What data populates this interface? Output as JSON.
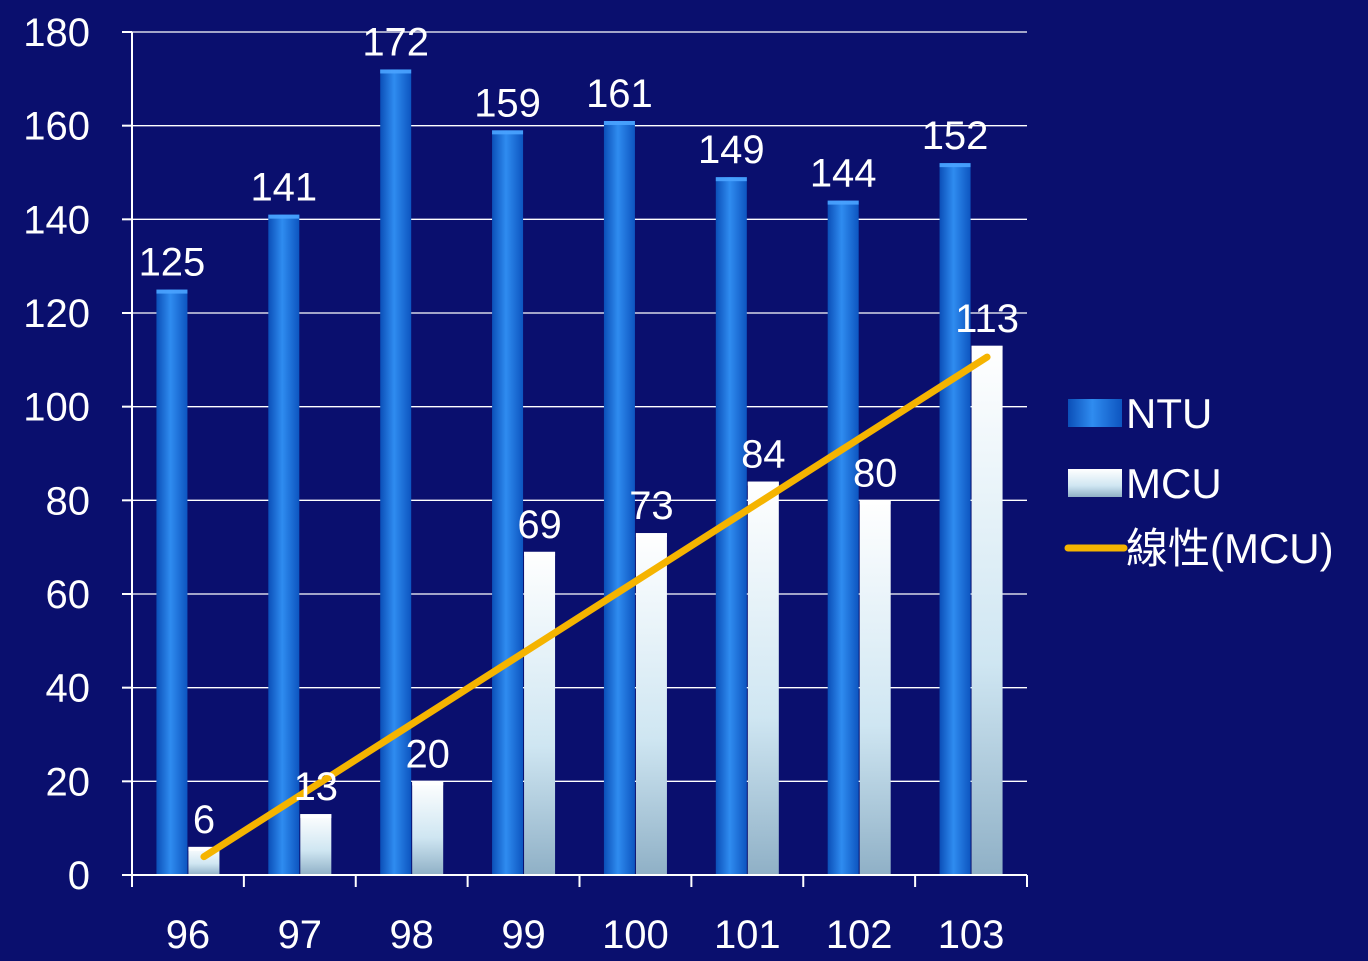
{
  "colors": {
    "background": "#0a0f6e",
    "ntu": "#1f78e6",
    "mcu": "#e6f4fb",
    "trend": "#f5b400",
    "grid": "#ffffff"
  },
  "chart_data": {
    "type": "bar",
    "title": "",
    "xlabel": "",
    "ylabel": "",
    "categories": [
      "96",
      "97",
      "98",
      "99",
      "100",
      "101",
      "102",
      "103"
    ],
    "series": [
      {
        "name": "NTU",
        "values": [
          125,
          141,
          172,
          159,
          161,
          149,
          144,
          152
        ]
      },
      {
        "name": "MCU",
        "values": [
          6,
          13,
          20,
          69,
          73,
          84,
          80,
          113
        ]
      }
    ],
    "trendline": {
      "name": "線性(MCU)",
      "of_series": "MCU",
      "type": "linear"
    },
    "ylim": [
      0,
      180
    ],
    "yticks": [
      0,
      20,
      40,
      60,
      80,
      100,
      120,
      140,
      160,
      180
    ],
    "grid": true,
    "legend_position": "right",
    "data_labels": true
  }
}
